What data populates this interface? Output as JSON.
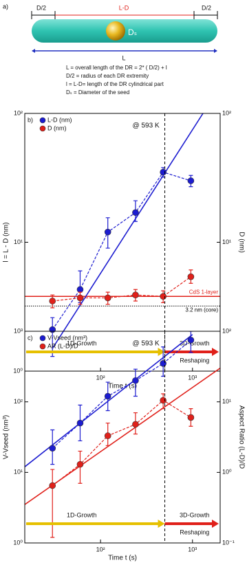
{
  "diagram": {
    "panel": "a)",
    "dims": [
      "D/2",
      "L-D",
      "D/2"
    ],
    "seed": "Dₛ",
    "length": "L",
    "definitions": [
      "L = overall length of the DR = 2* ( D/2) + l",
      "D/2  = radius of each DR extremity",
      "l = L-D= length of the DR cylindrical part",
      "Dₛ = Diameter of the seed"
    ]
  },
  "chart_data": [
    {
      "type": "scatter",
      "panel": "b)",
      "xlabel": "Time t (s)",
      "ylabel": "l = L - D (nm)",
      "y2label": "D (nm)",
      "log_x": true,
      "log_y": true,
      "legend": "upper left",
      "annotation": "@ 593 K",
      "xlim": [
        15,
        2000
      ],
      "xticks": [
        {
          "value": 100,
          "label": "10²"
        },
        {
          "value": 1000,
          "label": "10³"
        }
      ],
      "ylim": [
        1,
        100
      ],
      "yticks": [
        {
          "value": 1,
          "label": "10⁰"
        },
        {
          "value": 10,
          "label": "10¹"
        },
        {
          "value": 100,
          "label": "10²"
        }
      ],
      "y2lim": [
        1,
        100
      ],
      "y2ticks": [
        {
          "value": 10,
          "label": "10¹"
        },
        {
          "value": 100,
          "label": "10²"
        }
      ],
      "x": [
        30,
        60,
        120,
        240,
        480,
        960
      ],
      "series": [
        {
          "name": "L-D (nm)",
          "color": "#1c1cd0",
          "values": [
            2.1,
            4.3,
            12,
            17,
            35,
            30
          ],
          "lower": [
            1.3,
            3.4,
            9,
            14.5,
            32,
            27
          ],
          "upper": [
            2.6,
            6,
            15.5,
            21,
            38,
            33
          ]
        },
        {
          "name": "D (nm)",
          "color": "#e0201a",
          "axis": "y2",
          "values": [
            3.5,
            3.7,
            3.7,
            3.9,
            3.8,
            5.4
          ],
          "lower": [
            3.1,
            3.3,
            3.3,
            3.5,
            3.4,
            4.8
          ],
          "upper": [
            3.9,
            4.1,
            4.1,
            4.3,
            4.2,
            6.1
          ]
        }
      ],
      "fits": [
        {
          "color": "#1c1cd0",
          "x": [
            30,
            1300
          ],
          "y": [
            1.5,
            100
          ]
        }
      ],
      "hlines": [
        {
          "value": 3.8,
          "color": "#e0201a",
          "style": "solid",
          "label": "CdS 1-layer"
        },
        {
          "value": 3.2,
          "color": "#000000",
          "style": "dotted",
          "label": "3.2 nm (core)"
        }
      ],
      "vline": 500,
      "phases": [
        {
          "label": "1D-Growth",
          "color": "#e6c000"
        },
        {
          "label": "3D-Growth",
          "color": "#e0201a",
          "sublabel": "Reshaping"
        }
      ]
    },
    {
      "type": "scatter",
      "panel": "c)",
      "xlabel": "Time t (s)",
      "ylabel": "V-Vseed (nm³)",
      "y2label": "Aspect Ratio (L-D)/D",
      "log_x": true,
      "log_y": true,
      "legend": "upper left",
      "annotation": "@ 593 K",
      "xlim": [
        15,
        2000
      ],
      "xticks": [
        {
          "value": 100,
          "label": "10²"
        },
        {
          "value": 1000,
          "label": "10³"
        }
      ],
      "ylim": [
        1,
        1000
      ],
      "yticks": [
        {
          "value": 1,
          "label": "10⁰"
        },
        {
          "value": 10,
          "label": "10¹"
        },
        {
          "value": 100,
          "label": "10²"
        },
        {
          "value": 1000,
          "label": "10³"
        }
      ],
      "y2lim": [
        0.1,
        100
      ],
      "y2ticks": [
        {
          "value": 0.1,
          "label": "10⁻¹"
        },
        {
          "value": 1,
          "label": "10⁰"
        },
        {
          "value": 10,
          "label": "10¹"
        },
        {
          "value": 100,
          "label": "10²"
        }
      ],
      "x": [
        30,
        60,
        120,
        240,
        480,
        960
      ],
      "series": [
        {
          "name": "V-Vseed (nm³)",
          "color": "#1c1cd0",
          "values": [
            22,
            50,
            120,
            200,
            350,
            750
          ],
          "lower": [
            13,
            28,
            75,
            120,
            230,
            500
          ],
          "upper": [
            40,
            90,
            190,
            290,
            600,
            1000
          ]
        },
        {
          "name": "AR (L-D)/D",
          "color": "#e0201a",
          "axis": "y2",
          "values": [
            0.65,
            1.3,
            3.3,
            4.8,
            10.5,
            6
          ],
          "lower": [
            0.12,
            0.7,
            2.4,
            3.5,
            8,
            4.5
          ],
          "upper": [
            1.1,
            2,
            5,
            7,
            13,
            8
          ]
        }
      ],
      "fits": [
        {
          "color": "#1c1cd0",
          "x": [
            15,
            1000
          ],
          "y": [
            12,
            900
          ]
        },
        {
          "color": "#e0201a",
          "axis": "y2",
          "x": [
            15,
            2000
          ],
          "y": [
            0.35,
            30
          ]
        }
      ],
      "vline": 500,
      "phases": [
        {
          "label": "1D-Growth",
          "color": "#e6c000"
        },
        {
          "label": "3D-Growth",
          "color": "#e0201a",
          "sublabel": "Reshaping"
        }
      ]
    }
  ]
}
